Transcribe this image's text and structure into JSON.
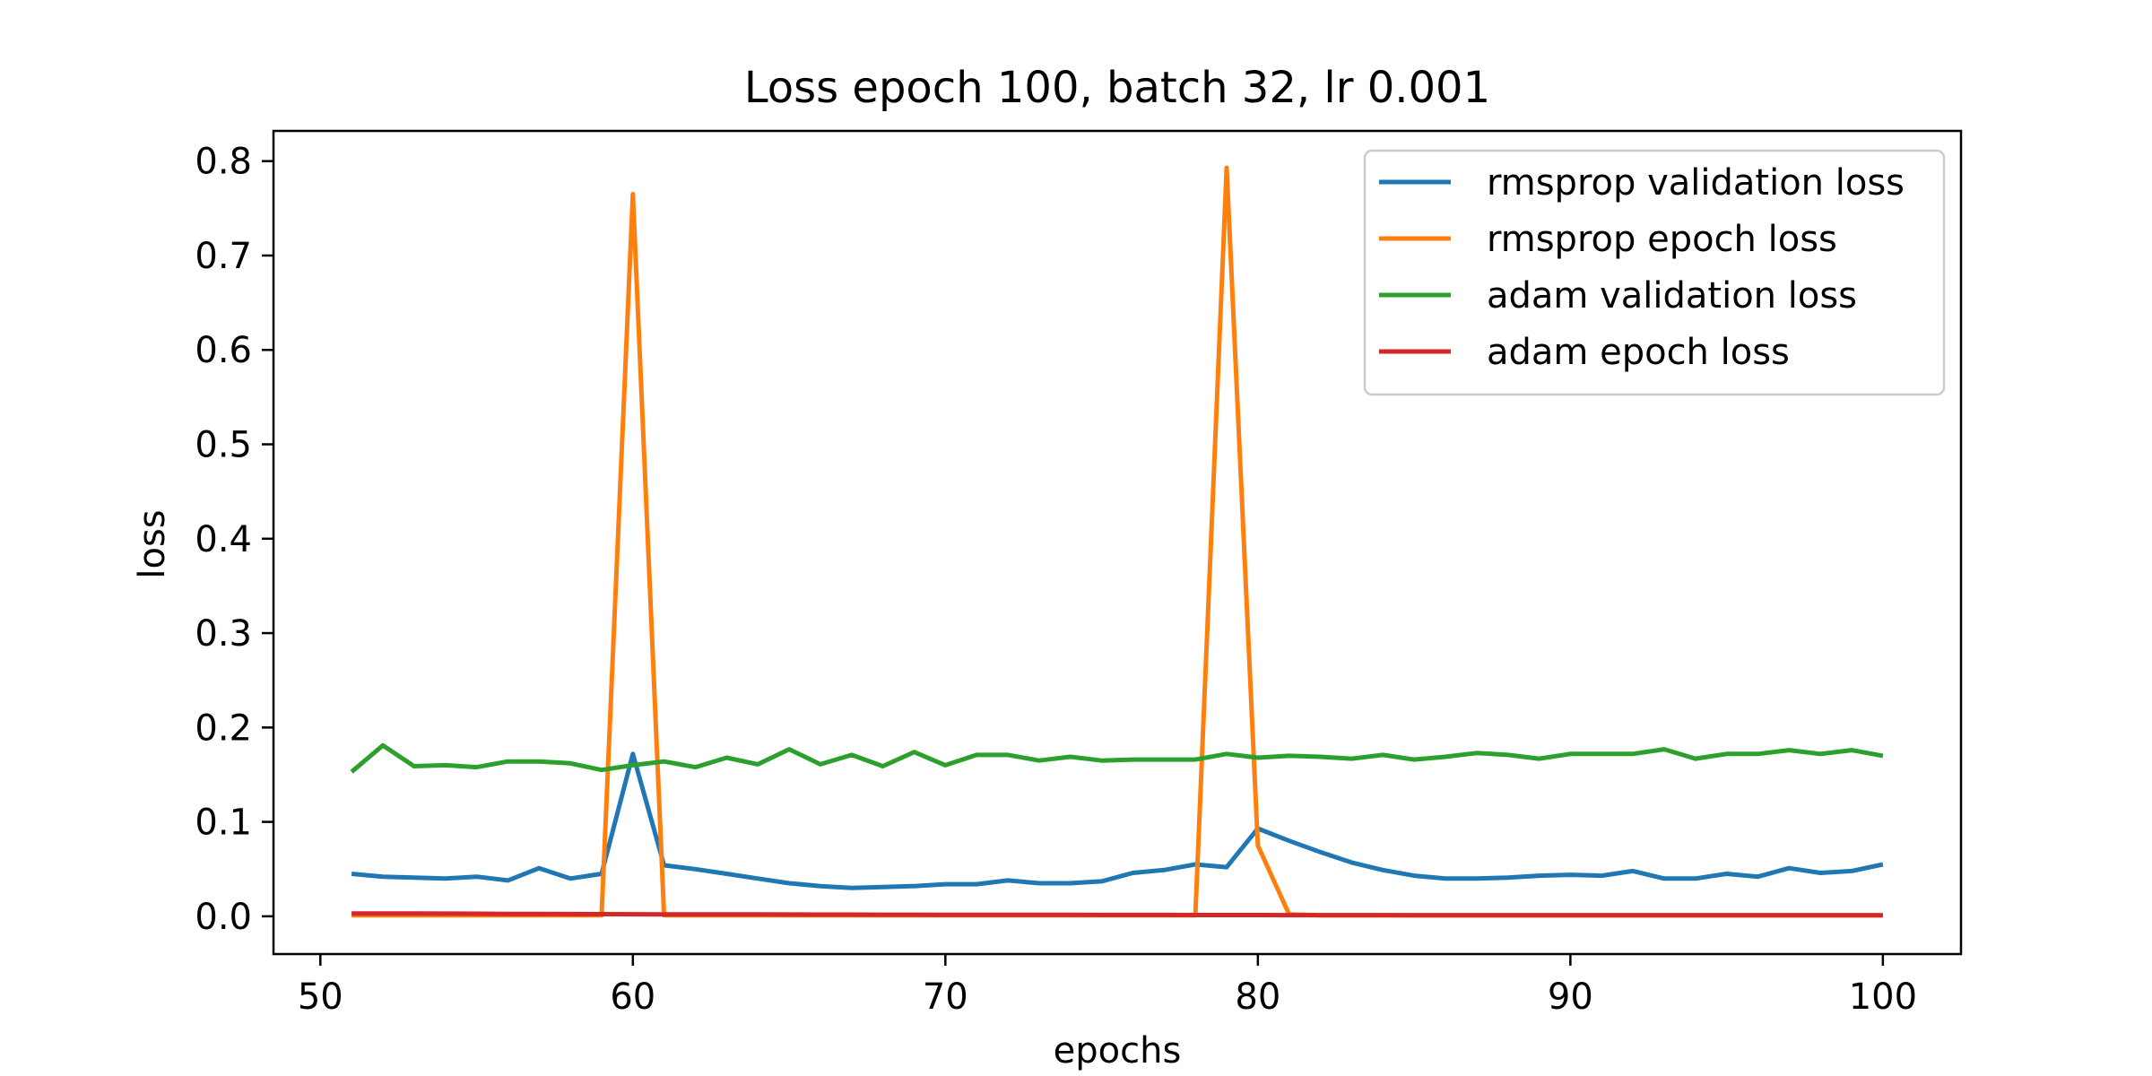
{
  "chart_data": {
    "type": "line",
    "title": "Loss epoch 100, batch 32, lr 0.001",
    "xlabel": "epochs",
    "ylabel": "loss",
    "xlim": [
      48.5,
      102.5
    ],
    "ylim": [
      -0.04,
      0.832
    ],
    "xticks": [
      50,
      60,
      70,
      80,
      90,
      100
    ],
    "yticks": [
      0.0,
      0.1,
      0.2,
      0.3,
      0.4,
      0.5,
      0.6,
      0.7,
      0.8
    ],
    "grid": false,
    "legend_position": "top-right",
    "x": [
      51,
      52,
      53,
      54,
      55,
      56,
      57,
      58,
      59,
      60,
      61,
      62,
      63,
      64,
      65,
      66,
      67,
      68,
      69,
      70,
      71,
      72,
      73,
      74,
      75,
      76,
      77,
      78,
      79,
      80,
      81,
      82,
      83,
      84,
      85,
      86,
      87,
      88,
      89,
      90,
      91,
      92,
      93,
      94,
      95,
      96,
      97,
      98,
      99,
      100
    ],
    "series": [
      {
        "name": "rmsprop validation loss",
        "color": "#1f77b4",
        "values": [
          0.045,
          0.042,
          0.041,
          0.04,
          0.042,
          0.038,
          0.051,
          0.04,
          0.045,
          0.172,
          0.054,
          0.05,
          0.045,
          0.04,
          0.035,
          0.032,
          0.03,
          0.031,
          0.032,
          0.034,
          0.034,
          0.038,
          0.035,
          0.035,
          0.037,
          0.046,
          0.049,
          0.055,
          0.052,
          0.093,
          0.08,
          0.068,
          0.057,
          0.049,
          0.043,
          0.04,
          0.04,
          0.041,
          0.043,
          0.044,
          0.043,
          0.048,
          0.04,
          0.04,
          0.045,
          0.042,
          0.051,
          0.046,
          0.048,
          0.055
        ]
      },
      {
        "name": "rmsprop epoch loss",
        "color": "#ff7f0e",
        "values": [
          0.001,
          0.001,
          0.001,
          0.001,
          0.001,
          0.001,
          0.001,
          0.001,
          0.001,
          0.765,
          0.001,
          0.001,
          0.001,
          0.001,
          0.001,
          0.001,
          0.001,
          0.001,
          0.001,
          0.001,
          0.001,
          0.001,
          0.001,
          0.001,
          0.001,
          0.001,
          0.001,
          0.001,
          0.793,
          0.075,
          0.002,
          0.001,
          0.001,
          0.001,
          0.001,
          0.001,
          0.001,
          0.001,
          0.001,
          0.001,
          0.001,
          0.001,
          0.001,
          0.001,
          0.001,
          0.001,
          0.001,
          0.001,
          0.001,
          0.001
        ]
      },
      {
        "name": "adam validation loss",
        "color": "#2ca02c",
        "values": [
          0.153,
          0.181,
          0.159,
          0.16,
          0.158,
          0.164,
          0.164,
          0.162,
          0.155,
          0.16,
          0.164,
          0.158,
          0.168,
          0.161,
          0.177,
          0.161,
          0.171,
          0.159,
          0.174,
          0.16,
          0.171,
          0.171,
          0.165,
          0.169,
          0.165,
          0.166,
          0.166,
          0.166,
          0.172,
          0.168,
          0.17,
          0.169,
          0.167,
          0.171,
          0.166,
          0.169,
          0.173,
          0.171,
          0.167,
          0.172,
          0.172,
          0.172,
          0.177,
          0.167,
          0.172,
          0.172,
          0.176,
          0.172,
          0.176,
          0.17
        ]
      },
      {
        "name": "adam epoch loss",
        "color": "#d62728",
        "values": [
          0.003,
          0.003,
          0.003,
          0.0028,
          0.0027,
          0.0026,
          0.0025,
          0.0024,
          0.0023,
          0.0022,
          0.0021,
          0.0021,
          0.002,
          0.002,
          0.0019,
          0.0018,
          0.0018,
          0.0017,
          0.0017,
          0.0016,
          0.0016,
          0.0015,
          0.0015,
          0.0015,
          0.0014,
          0.0014,
          0.0014,
          0.0013,
          0.0013,
          0.0013,
          0.0012,
          0.0012,
          0.0012,
          0.0012,
          0.0011,
          0.0011,
          0.0011,
          0.0011,
          0.0011,
          0.001,
          0.001,
          0.001,
          0.001,
          0.001,
          0.001,
          0.001,
          0.001,
          0.001,
          0.001,
          0.001
        ]
      }
    ]
  }
}
